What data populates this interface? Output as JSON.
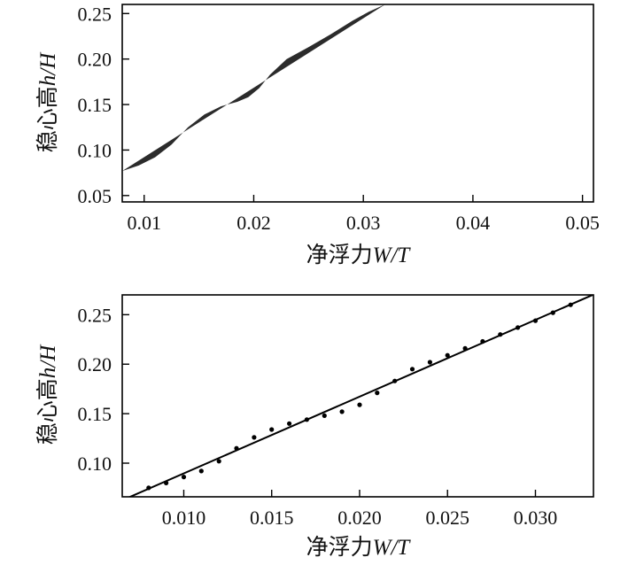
{
  "chart_data": [
    {
      "type": "heatmap",
      "description_region": "dark filled stability region bounded on the right by a curve",
      "xlim": [
        0.008,
        0.051
      ],
      "ylim": [
        0.043,
        0.26
      ],
      "xticks": [
        "0.01",
        "0.02",
        "0.03",
        "0.04",
        "0.05"
      ],
      "yticks": [
        "0.05",
        "0.10",
        "0.15",
        "0.20",
        "0.25"
      ],
      "xlabel_prefix": "净浮力",
      "xlabel_var": "W/T",
      "ylabel_prefix": "稳心高",
      "ylabel_var": "h/H",
      "region_color": "#2b2b2b",
      "boundary": [
        {
          "x": 0.008,
          "y": 0.077
        },
        {
          "x": 0.0095,
          "y": 0.083
        },
        {
          "x": 0.011,
          "y": 0.092
        },
        {
          "x": 0.0125,
          "y": 0.106
        },
        {
          "x": 0.014,
          "y": 0.125
        },
        {
          "x": 0.0155,
          "y": 0.139
        },
        {
          "x": 0.017,
          "y": 0.148
        },
        {
          "x": 0.0185,
          "y": 0.153
        },
        {
          "x": 0.0195,
          "y": 0.158
        },
        {
          "x": 0.0205,
          "y": 0.168
        },
        {
          "x": 0.0215,
          "y": 0.183
        },
        {
          "x": 0.023,
          "y": 0.2
        },
        {
          "x": 0.025,
          "y": 0.213
        },
        {
          "x": 0.027,
          "y": 0.227
        },
        {
          "x": 0.029,
          "y": 0.242
        },
        {
          "x": 0.0305,
          "y": 0.252
        },
        {
          "x": 0.032,
          "y": 0.26
        }
      ]
    },
    {
      "type": "scatter",
      "xlim": [
        0.0065,
        0.0333
      ],
      "ylim": [
        0.066,
        0.27
      ],
      "xticks": [
        "0.010",
        "0.015",
        "0.020",
        "0.025",
        "0.030"
      ],
      "yticks": [
        "0.10",
        "0.15",
        "0.20",
        "0.25"
      ],
      "xlabel_prefix": "净浮力",
      "xlabel_var": "W/T",
      "ylabel_prefix": "稳心高",
      "ylabel_var": "h/H",
      "points": [
        {
          "x": 0.008,
          "y": 0.075
        },
        {
          "x": 0.009,
          "y": 0.08
        },
        {
          "x": 0.01,
          "y": 0.086
        },
        {
          "x": 0.011,
          "y": 0.092
        },
        {
          "x": 0.012,
          "y": 0.102
        },
        {
          "x": 0.013,
          "y": 0.115
        },
        {
          "x": 0.014,
          "y": 0.126
        },
        {
          "x": 0.015,
          "y": 0.134
        },
        {
          "x": 0.016,
          "y": 0.14
        },
        {
          "x": 0.017,
          "y": 0.144
        },
        {
          "x": 0.018,
          "y": 0.148
        },
        {
          "x": 0.019,
          "y": 0.152
        },
        {
          "x": 0.02,
          "y": 0.159
        },
        {
          "x": 0.021,
          "y": 0.171
        },
        {
          "x": 0.022,
          "y": 0.183
        },
        {
          "x": 0.023,
          "y": 0.195
        },
        {
          "x": 0.024,
          "y": 0.202
        },
        {
          "x": 0.025,
          "y": 0.209
        },
        {
          "x": 0.026,
          "y": 0.216
        },
        {
          "x": 0.027,
          "y": 0.223
        },
        {
          "x": 0.028,
          "y": 0.23
        },
        {
          "x": 0.029,
          "y": 0.237
        },
        {
          "x": 0.03,
          "y": 0.244
        },
        {
          "x": 0.031,
          "y": 0.252
        },
        {
          "x": 0.032,
          "y": 0.26
        }
      ],
      "fit_line": {
        "x": [
          0.0065,
          0.0333
        ],
        "y": [
          0.0625,
          0.2704
        ]
      }
    }
  ]
}
